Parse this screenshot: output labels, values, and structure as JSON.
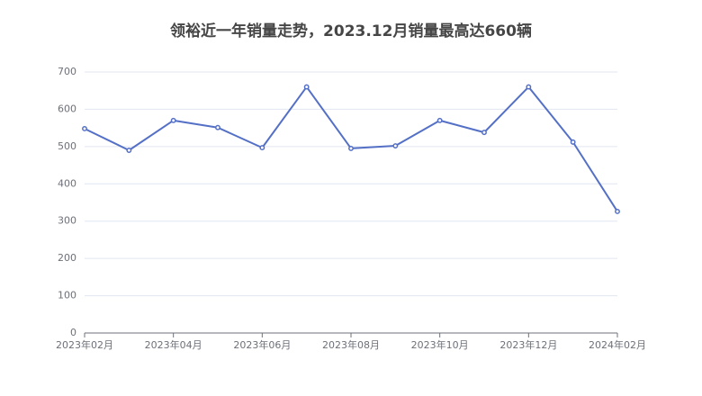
{
  "chart_data": {
    "type": "line",
    "title": "领裕近一年销量走势，2023.12月销量最高达660辆",
    "categories": [
      "2023年02月",
      null,
      "2023年04月",
      null,
      "2023年06月",
      null,
      "2023年08月",
      null,
      "2023年10月",
      null,
      "2023年12月",
      null,
      "2024年02月"
    ],
    "values": [
      548,
      490,
      570,
      551,
      497,
      660,
      495,
      502,
      570,
      538,
      660,
      512,
      326
    ],
    "color": "#5470c6",
    "ylim": [
      0,
      700
    ],
    "yticks": [
      0,
      100,
      200,
      300,
      400,
      500,
      600,
      700
    ],
    "grid": true
  }
}
